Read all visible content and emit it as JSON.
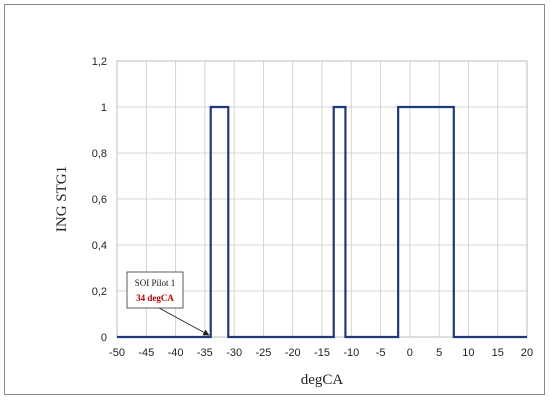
{
  "chart_data": {
    "type": "line",
    "xlabel": "degCA",
    "ylabel": "ING STG1",
    "xlim": [
      -50,
      20
    ],
    "ylim": [
      0,
      1.2
    ],
    "x_ticks": [
      "-50",
      "-45",
      "-40",
      "-35",
      "-30",
      "-25",
      "-20",
      "-15",
      "-10",
      "-5",
      "0",
      "5",
      "10",
      "15",
      "20"
    ],
    "y_ticks": [
      "0",
      "0,2",
      "0,4",
      "0,6",
      "0,8",
      "1",
      "1,2"
    ],
    "grid": true,
    "series": [
      {
        "x": [
          -50,
          -34,
          -34,
          -31,
          -31,
          -13,
          -13,
          -11,
          -11,
          -2,
          -2,
          7.5,
          7.5,
          20
        ],
        "y": [
          0,
          0,
          1,
          1,
          0,
          0,
          1,
          1,
          0,
          0,
          1,
          1,
          0,
          0
        ]
      }
    ],
    "annotation": {
      "label": "SOI Pilot 1",
      "value": "34 degCA",
      "value_color": "#c00000",
      "points_to_x": -34,
      "points_to_y": 0
    },
    "line_color": "#1f3a7a"
  }
}
